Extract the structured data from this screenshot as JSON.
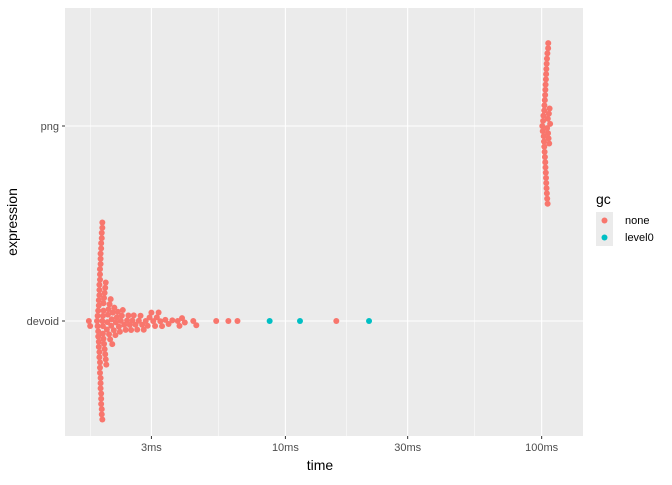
{
  "chart_data": {
    "type": "scatter",
    "subtype": "beeswarm",
    "xlabel": "time",
    "ylabel": "expression",
    "x_scale": "log10",
    "xlim_ms": [
      1.38,
      145
    ],
    "x_ticks": [
      {
        "value": 3,
        "label": "3ms"
      },
      {
        "value": 10,
        "label": "10ms"
      },
      {
        "value": 30,
        "label": "30ms"
      },
      {
        "value": 100,
        "label": "100ms"
      }
    ],
    "categories": [
      "devoid",
      "png"
    ],
    "grid": true,
    "legend": {
      "title": "gc",
      "position": "right",
      "entries": [
        {
          "label": "none",
          "color": "#F8766D"
        },
        {
          "label": "level0",
          "color": "#00BFC4"
        }
      ]
    },
    "series": [
      {
        "expression": "png",
        "gc": "none",
        "time_ms": [
          100.6,
          101.0,
          101.3,
          101.6,
          101.9,
          102.1,
          102.3,
          102.5,
          102.7,
          102.9,
          103.0,
          103.2,
          103.3,
          103.5,
          103.6,
          103.8,
          103.9,
          104.0,
          104.2,
          104.3,
          104.5,
          104.6,
          104.8,
          104.9,
          105.1,
          105.3,
          105.5,
          105.7,
          105.9,
          106.1,
          106.4,
          106.7,
          107.0,
          107.4,
          107.9,
          102.4,
          103.4,
          104.1,
          105.0,
          106.0
        ]
      },
      {
        "expression": "devoid",
        "gc": "none",
        "time_ms": [
          1.71,
          1.73,
          1.84,
          1.85,
          1.85,
          1.86,
          1.86,
          1.86,
          1.87,
          1.87,
          1.87,
          1.87,
          1.88,
          1.88,
          1.88,
          1.88,
          1.88,
          1.89,
          1.89,
          1.89,
          1.89,
          1.89,
          1.89,
          1.9,
          1.9,
          1.9,
          1.9,
          1.9,
          1.9,
          1.91,
          1.91,
          1.91,
          1.91,
          1.91,
          1.92,
          1.92,
          1.92,
          1.92,
          1.93,
          1.93,
          1.93,
          1.93,
          1.94,
          1.94,
          1.94,
          1.95,
          1.95,
          1.95,
          1.96,
          1.96,
          1.97,
          1.97,
          1.98,
          1.98,
          1.99,
          1.99,
          2.0,
          2.01,
          2.02,
          2.03,
          2.04,
          2.05,
          2.06,
          2.07,
          2.08,
          2.09,
          2.1,
          2.11,
          2.12,
          2.14,
          2.15,
          2.17,
          2.18,
          2.2,
          2.22,
          2.24,
          2.26,
          2.28,
          2.3,
          2.32,
          2.35,
          2.38,
          2.41,
          2.44,
          2.47,
          2.5,
          2.53,
          2.56,
          2.6,
          2.64,
          2.68,
          2.72,
          2.76,
          2.8,
          2.85,
          2.9,
          2.95,
          3.0,
          3.05,
          3.1,
          3.15,
          3.2,
          3.25,
          3.3,
          3.4,
          3.5,
          3.62,
          3.8,
          3.86,
          3.95,
          4.05,
          4.37,
          4.49,
          5.37,
          5.99,
          6.5,
          15.8
        ]
      },
      {
        "expression": "devoid",
        "gc": "level0",
        "time_ms": [
          8.68,
          11.4,
          21.2
        ]
      }
    ]
  }
}
